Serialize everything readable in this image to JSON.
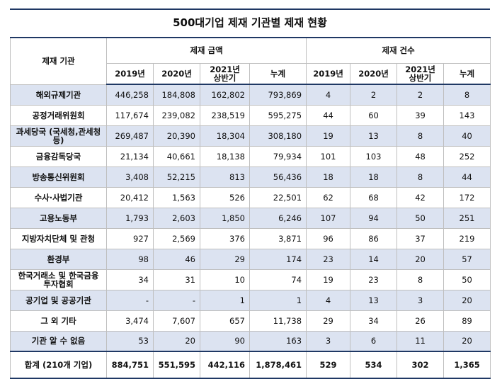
{
  "title": "500대기업 제재 기관별 제재 현황",
  "header": {
    "agency": "제재 기관",
    "amount_group": "제재 금액",
    "count_group": "제재 건수",
    "amount_cols": [
      "2019년",
      "2020년",
      "2021년 상반기",
      "누계"
    ],
    "count_cols": [
      "2019년",
      "2020년",
      "2021년 상반기",
      "누계"
    ]
  },
  "rows": [
    {
      "name": "해외규제기관",
      "a2019": "446,258",
      "a2020": "184,808",
      "a2021": "162,802",
      "atotal": "793,869",
      "c2019": "4",
      "c2020": "2",
      "c2021": "2",
      "ctotal": "8"
    },
    {
      "name": "공정거래위원회",
      "a2019": "117,674",
      "a2020": "239,082",
      "a2021": "238,519",
      "atotal": "595,275",
      "c2019": "44",
      "c2020": "60",
      "c2021": "39",
      "ctotal": "143"
    },
    {
      "name": "과세당국 (국세청,관세청등)",
      "a2019": "269,487",
      "a2020": "20,390",
      "a2021": "18,304",
      "atotal": "308,180",
      "c2019": "19",
      "c2020": "13",
      "c2021": "8",
      "ctotal": "40"
    },
    {
      "name": "금융감독당국",
      "a2019": "21,134",
      "a2020": "40,661",
      "a2021": "18,138",
      "atotal": "79,934",
      "c2019": "101",
      "c2020": "103",
      "c2021": "48",
      "ctotal": "252"
    },
    {
      "name": "방송통신위원회",
      "a2019": "3,408",
      "a2020": "52,215",
      "a2021": "813",
      "atotal": "56,436",
      "c2019": "18",
      "c2020": "18",
      "c2021": "8",
      "ctotal": "44"
    },
    {
      "name": "수사·사법기관",
      "a2019": "20,412",
      "a2020": "1,563",
      "a2021": "526",
      "atotal": "22,501",
      "c2019": "62",
      "c2020": "68",
      "c2021": "42",
      "ctotal": "172"
    },
    {
      "name": "고용노동부",
      "a2019": "1,793",
      "a2020": "2,603",
      "a2021": "1,850",
      "atotal": "6,246",
      "c2019": "107",
      "c2020": "94",
      "c2021": "50",
      "ctotal": "251"
    },
    {
      "name": "지방자치단체 및 관청",
      "a2019": "927",
      "a2020": "2,569",
      "a2021": "376",
      "atotal": "3,871",
      "c2019": "96",
      "c2020": "86",
      "c2021": "37",
      "ctotal": "219"
    },
    {
      "name": "환경부",
      "a2019": "98",
      "a2020": "46",
      "a2021": "29",
      "atotal": "174",
      "c2019": "23",
      "c2020": "14",
      "c2021": "20",
      "ctotal": "57"
    },
    {
      "name": "한국거래소 및 한국금융투자협회",
      "a2019": "34",
      "a2020": "31",
      "a2021": "10",
      "atotal": "74",
      "c2019": "19",
      "c2020": "23",
      "c2021": "8",
      "ctotal": "50"
    },
    {
      "name": "공기업 및 공공기관",
      "a2019": "-",
      "a2020": "-",
      "a2021": "1",
      "atotal": "1",
      "c2019": "4",
      "c2020": "13",
      "c2021": "3",
      "ctotal": "20"
    },
    {
      "name": "그 외 기타",
      "a2019": "3,474",
      "a2020": "7,607",
      "a2021": "657",
      "atotal": "11,738",
      "c2019": "29",
      "c2020": "34",
      "c2021": "26",
      "ctotal": "89"
    },
    {
      "name": "기관 알 수 없음",
      "a2019": "53",
      "a2020": "20",
      "a2021": "90",
      "atotal": "163",
      "c2019": "3",
      "c2020": "6",
      "c2021": "11",
      "ctotal": "20"
    }
  ],
  "total": {
    "name": "합계 (210개 기업)",
    "a2019": "884,751",
    "a2020": "551,595",
    "a2021": "442,116",
    "atotal": "1,878,461",
    "c2019": "529",
    "c2020": "534",
    "c2021": "302",
    "ctotal": "1,365"
  },
  "colors": {
    "rule": "#1f3864",
    "band": "#dce3f1",
    "grid": "#bfbfbf"
  }
}
